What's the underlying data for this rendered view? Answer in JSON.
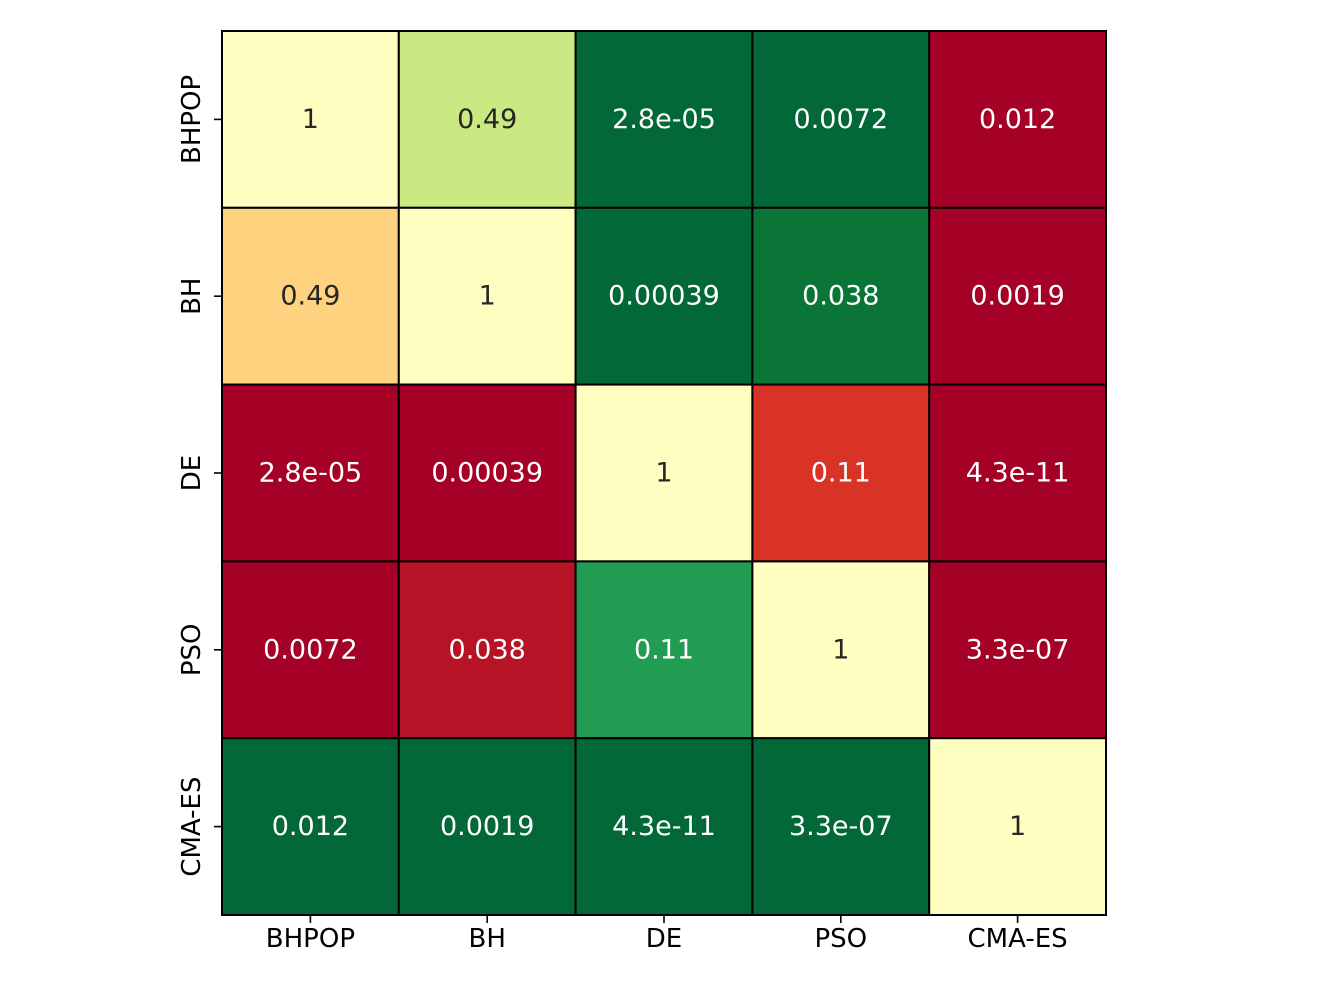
{
  "chart_data": {
    "type": "heatmap",
    "title": "",
    "xlabel": "",
    "ylabel": "",
    "x_categories": [
      "BHPOP",
      "BH",
      "DE",
      "PSO",
      "CMA-ES"
    ],
    "y_categories": [
      "BHPOP",
      "BH",
      "DE",
      "PSO",
      "CMA-ES"
    ],
    "values": [
      [
        "1",
        "0.49",
        "2.8e-05",
        "0.0072",
        "0.012"
      ],
      [
        "0.49",
        "1",
        "0.00039",
        "0.038",
        "0.0019"
      ],
      [
        "2.8e-05",
        "0.00039",
        "1",
        "0.11",
        "4.3e-11"
      ],
      [
        "0.0072",
        "0.038",
        "0.11",
        "1",
        "3.3e-07"
      ],
      [
        "0.012",
        "0.0019",
        "4.3e-11",
        "3.3e-07",
        "1"
      ]
    ],
    "cell_colors": [
      [
        "#fefec0",
        "#cbe982",
        "#026837",
        "#026837",
        "#a50026"
      ],
      [
        "#fed27f",
        "#fefec0",
        "#026837",
        "#0a7537",
        "#a50026"
      ],
      [
        "#a50026",
        "#a50026",
        "#fefec0",
        "#d93328",
        "#a50026"
      ],
      [
        "#a50026",
        "#b61326",
        "#219c52",
        "#fefec0",
        "#a50026"
      ],
      [
        "#026837",
        "#026837",
        "#026837",
        "#026837",
        "#fefec0"
      ]
    ],
    "label_colors": [
      [
        "#262626",
        "#262626",
        "#ffffff",
        "#ffffff",
        "#ffffff"
      ],
      [
        "#262626",
        "#262626",
        "#ffffff",
        "#ffffff",
        "#ffffff"
      ],
      [
        "#ffffff",
        "#ffffff",
        "#262626",
        "#ffffff",
        "#ffffff"
      ],
      [
        "#ffffff",
        "#ffffff",
        "#ffffff",
        "#262626",
        "#ffffff"
      ],
      [
        "#ffffff",
        "#ffffff",
        "#ffffff",
        "#ffffff",
        "#262626"
      ]
    ],
    "colormap": "RdYlGn",
    "cell_border_color": "#000000",
    "colorbar": false
  }
}
